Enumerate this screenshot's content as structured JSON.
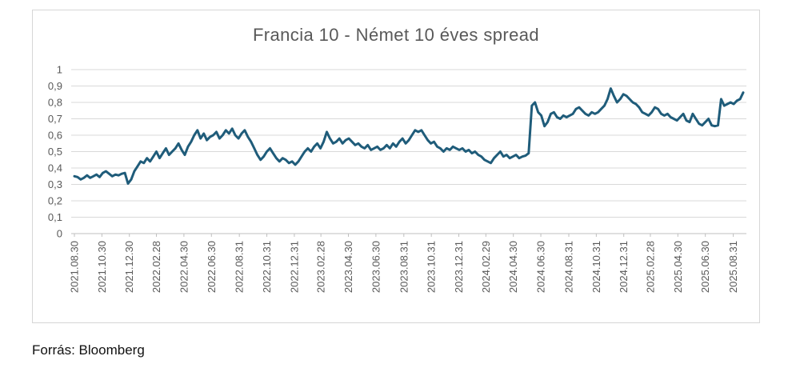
{
  "source": {
    "text": "Forrás: Bloomberg"
  },
  "chart_data": {
    "type": "line",
    "title": "Francia 10 - Német 10 éves spread",
    "ylim": [
      0,
      1
    ],
    "grid": true,
    "legend": "none",
    "line_color": "#1f5c7a",
    "grid_color": "#d9d9d9",
    "axis_color": "#bfbfbf",
    "label_color": "#595959",
    "x_label_rotation": -90,
    "points_interval": "weekly",
    "x_start": "2021.08.30",
    "y_tick_labels": [
      "0",
      "0,1",
      "0,2",
      "0,3",
      "0,4",
      "0,5",
      "0,6",
      "0,7",
      "0,8",
      "0,9",
      "1"
    ],
    "x_tick_labels": [
      "2021.08.30",
      "2021.10.30",
      "2021.12.30",
      "2022.02.28",
      "2022.04.30",
      "2022.06.30",
      "2022.08.31",
      "2022.10.31",
      "2022.12.31",
      "2023.02.28",
      "2023.04.30",
      "2023.06.30",
      "2023.08.31",
      "2023.10.31",
      "2023.12.31",
      "2024.02.29",
      "2024.04.30",
      "2024.06.30",
      "2024.08.31",
      "2024.10.31",
      "2024.12.31",
      "2025.02.28",
      "2025.04.30",
      "2025.06.30",
      "2025.08.31"
    ],
    "values": [
      0.35,
      0.345,
      0.33,
      0.34,
      0.355,
      0.34,
      0.35,
      0.36,
      0.345,
      0.37,
      0.38,
      0.365,
      0.35,
      0.36,
      0.355,
      0.365,
      0.37,
      0.305,
      0.33,
      0.38,
      0.41,
      0.44,
      0.43,
      0.46,
      0.44,
      0.47,
      0.5,
      0.46,
      0.49,
      0.52,
      0.48,
      0.5,
      0.52,
      0.55,
      0.51,
      0.48,
      0.53,
      0.56,
      0.6,
      0.63,
      0.58,
      0.61,
      0.57,
      0.59,
      0.6,
      0.62,
      0.58,
      0.6,
      0.63,
      0.61,
      0.64,
      0.6,
      0.58,
      0.61,
      0.63,
      0.59,
      0.56,
      0.52,
      0.48,
      0.45,
      0.47,
      0.5,
      0.52,
      0.49,
      0.46,
      0.44,
      0.46,
      0.45,
      0.43,
      0.44,
      0.42,
      0.44,
      0.47,
      0.5,
      0.52,
      0.5,
      0.53,
      0.55,
      0.52,
      0.56,
      0.62,
      0.58,
      0.55,
      0.56,
      0.58,
      0.55,
      0.57,
      0.58,
      0.56,
      0.54,
      0.55,
      0.53,
      0.52,
      0.54,
      0.51,
      0.52,
      0.53,
      0.51,
      0.52,
      0.54,
      0.52,
      0.55,
      0.53,
      0.56,
      0.58,
      0.55,
      0.57,
      0.6,
      0.63,
      0.62,
      0.63,
      0.6,
      0.57,
      0.55,
      0.56,
      0.53,
      0.52,
      0.5,
      0.52,
      0.51,
      0.53,
      0.52,
      0.51,
      0.52,
      0.5,
      0.51,
      0.49,
      0.5,
      0.48,
      0.47,
      0.45,
      0.44,
      0.43,
      0.46,
      0.48,
      0.5,
      0.47,
      0.48,
      0.46,
      0.47,
      0.48,
      0.46,
      0.47,
      0.475,
      0.49,
      0.78,
      0.8,
      0.74,
      0.72,
      0.655,
      0.68,
      0.73,
      0.74,
      0.71,
      0.7,
      0.72,
      0.71,
      0.72,
      0.73,
      0.76,
      0.77,
      0.75,
      0.73,
      0.72,
      0.74,
      0.73,
      0.74,
      0.76,
      0.78,
      0.82,
      0.885,
      0.84,
      0.8,
      0.82,
      0.85,
      0.84,
      0.82,
      0.8,
      0.79,
      0.77,
      0.74,
      0.73,
      0.72,
      0.74,
      0.77,
      0.76,
      0.73,
      0.72,
      0.73,
      0.71,
      0.7,
      0.69,
      0.71,
      0.73,
      0.69,
      0.68,
      0.73,
      0.7,
      0.67,
      0.66,
      0.68,
      0.7,
      0.66,
      0.655,
      0.66,
      0.82,
      0.78,
      0.79,
      0.8,
      0.79,
      0.81,
      0.82,
      0.86
    ]
  }
}
